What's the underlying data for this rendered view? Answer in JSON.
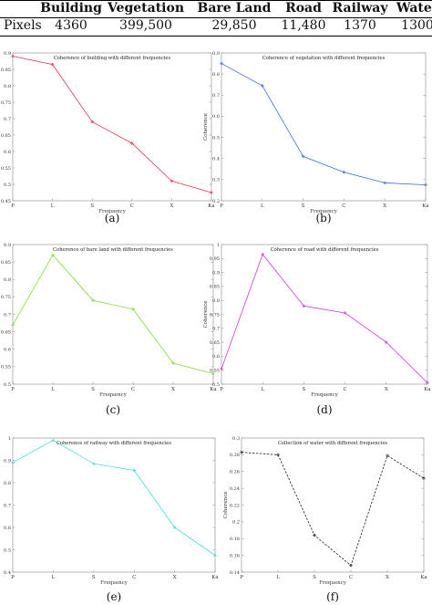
{
  "table": {
    "row_label": "Pixels",
    "columns": [
      "Building",
      "Vegetation",
      "Bare Land",
      "Road",
      "Railway",
      "Water"
    ],
    "values": [
      "4360",
      "399,500",
      "29,850",
      "11,480",
      "1370",
      "1300"
    ]
  },
  "chart_data": [
    {
      "type": "line",
      "panel": "(a)",
      "title": "Coherence of building with different frequencies",
      "xlabel": "Frequency",
      "ylabel": "Coherence",
      "categories": [
        "P",
        "L",
        "S",
        "C",
        "X",
        "Ka"
      ],
      "values": [
        0.89,
        0.865,
        0.69,
        0.625,
        0.51,
        0.475
      ],
      "ylim": [
        0.45,
        0.9
      ],
      "yticks": [
        0.45,
        0.5,
        0.55,
        0.6,
        0.65,
        0.7,
        0.75,
        0.8,
        0.85,
        0.9
      ],
      "ytick_labels": [
        "0.45",
        "0.5",
        "0.55",
        "0.6",
        "0.65",
        "0.7",
        "0.75",
        "0.8",
        "0.85",
        "0.9"
      ],
      "color": "#e8344a"
    },
    {
      "type": "line",
      "panel": "(b)",
      "title": "Coherence of vegetation with different frequencies",
      "xlabel": "Frequency",
      "ylabel": "Coherence",
      "categories": [
        "P",
        "L",
        "S",
        "C",
        "X",
        "Ka"
      ],
      "values": [
        0.85,
        0.745,
        0.41,
        0.335,
        0.285,
        0.275
      ],
      "ylim": [
        0.2,
        0.9
      ],
      "yticks": [
        0.2,
        0.3,
        0.4,
        0.5,
        0.6,
        0.7,
        0.8,
        0.9
      ],
      "ytick_labels": [
        "0.2",
        "0.3",
        "0.4",
        "0.5",
        "0.6",
        "0.7",
        "0.8",
        "0.9"
      ],
      "color": "#3b6fe0"
    },
    {
      "type": "line",
      "panel": "(c)",
      "title": "Coherence of bare land with different frequencies",
      "xlabel": "Frequency",
      "ylabel": "",
      "categories": [
        "P",
        "L",
        "S",
        "C",
        "X",
        "Ka"
      ],
      "values": [
        0.67,
        0.87,
        0.74,
        0.715,
        0.56,
        0.53
      ],
      "ylim": [
        0.5,
        0.9
      ],
      "yticks": [
        0.5,
        0.55,
        0.6,
        0.65,
        0.7,
        0.75,
        0.8,
        0.85,
        0.9
      ],
      "ytick_labels": [
        "0.5",
        "0.55",
        "0.6",
        "0.65",
        "0.7",
        "0.75",
        "0.8",
        "0.85",
        "0.9"
      ],
      "color": "#7ee02a"
    },
    {
      "type": "line",
      "panel": "(d)",
      "title": "Coherence of road with different frequencies",
      "xlabel": "Frequency",
      "ylabel": "Coherence",
      "categories": [
        "P",
        "L",
        "S",
        "C",
        "X",
        "Ka"
      ],
      "values": [
        0.555,
        0.965,
        0.78,
        0.755,
        0.65,
        0.505
      ],
      "ylim": [
        0.5,
        1.0
      ],
      "yticks": [
        0.5,
        0.55,
        0.6,
        0.65,
        0.7,
        0.75,
        0.8,
        0.85,
        0.9,
        0.95,
        1.0
      ],
      "ytick_labels": [
        "0.5",
        "0.55",
        "0.6",
        "0.65",
        "0.7",
        "0.75",
        "0.8",
        "0.85",
        "0.9",
        "0.95",
        "1"
      ],
      "color": "#d23ad8"
    },
    {
      "type": "line",
      "panel": "(e)",
      "title": "Coherence of railway with different frequencies",
      "xlabel": "Frequency",
      "ylabel": "",
      "categories": [
        "P",
        "L",
        "S",
        "C",
        "X",
        "Ka"
      ],
      "values": [
        0.89,
        0.99,
        0.885,
        0.855,
        0.6,
        0.475
      ],
      "ylim": [
        0.4,
        1.0
      ],
      "yticks": [
        0.4,
        0.5,
        0.6,
        0.7,
        0.8,
        0.9,
        1.0
      ],
      "ytick_labels": [
        "0.4",
        "0.5",
        "0.6",
        "0.7",
        "0.8",
        "0.9",
        "1"
      ],
      "color": "#3de0d8"
    },
    {
      "type": "line",
      "panel": "(f)",
      "title": "Collection of water with different frequencies",
      "xlabel": "Frequency",
      "ylabel": "Coherence",
      "categories": [
        "P",
        "L",
        "S",
        "C",
        "X",
        "Ka"
      ],
      "values": [
        0.283,
        0.28,
        0.184,
        0.148,
        0.279,
        0.252
      ],
      "ylim": [
        0.14,
        0.3
      ],
      "yticks": [
        0.14,
        0.16,
        0.18,
        0.2,
        0.22,
        0.24,
        0.26,
        0.28,
        0.3
      ],
      "ytick_labels": [
        "0.14",
        "0.16",
        "0.18",
        "0.2",
        "0.22",
        "0.24",
        "0.26",
        "0.28",
        "0.3"
      ],
      "color": "#222222"
    }
  ]
}
